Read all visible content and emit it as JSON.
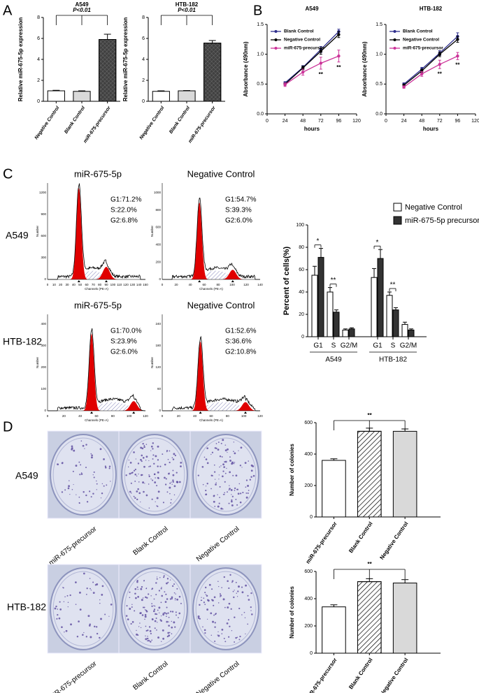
{
  "panels": [
    "A",
    "B",
    "C",
    "D"
  ],
  "chart_data": [
    {
      "type": "bar",
      "title": "A549",
      "ylabel": "Relative miR-675-5p expression",
      "annotation": "P<0.01",
      "categories": [
        "Negative Control",
        "Blank Control",
        "miR-675-precursor"
      ],
      "values": [
        1.0,
        0.95,
        5.9
      ],
      "errors": [
        0.05,
        0.05,
        0.5
      ],
      "colors": [
        "#ffffff",
        "#d9d9d9",
        "#404040"
      ],
      "hatch": [
        false,
        false,
        true
      ],
      "ylim": [
        0,
        8
      ],
      "yticks": [
        0,
        2,
        4,
        6,
        8
      ]
    },
    {
      "type": "bar",
      "title": "HTB-182",
      "ylabel": "Relative miR-675-5p expression",
      "annotation": "P<0.01",
      "categories": [
        "Negative Control",
        "Blank Control",
        "miR-675-precursor"
      ],
      "values": [
        0.95,
        1.0,
        5.55
      ],
      "errors": [
        0.05,
        0.03,
        0.25
      ],
      "colors": [
        "#ffffff",
        "#d9d9d9",
        "#404040"
      ],
      "hatch": [
        false,
        false,
        true
      ],
      "ylim": [
        0,
        8
      ],
      "yticks": [
        0,
        2,
        4,
        6,
        8
      ]
    },
    {
      "type": "line",
      "title": "A549",
      "xlabel": "hours",
      "ylabel": "Absorbance (490nm)",
      "x": [
        24,
        48,
        72,
        96
      ],
      "xlim": [
        0,
        120
      ],
      "xticks": [
        0,
        24,
        48,
        72,
        96,
        120
      ],
      "ylim": [
        0,
        1.5
      ],
      "yticks": [
        {
          "value": 0,
          "label": "0.0"
        },
        {
          "value": 0.5,
          "label": "0.5"
        },
        {
          "value": 1,
          "label": "1.0"
        },
        {
          "value": 1.5,
          "label": "1.5"
        }
      ],
      "annotations": [
        "**",
        "**"
      ],
      "series": [
        {
          "name": "Blank Control",
          "color": "#2e2e8c",
          "values": [
            0.52,
            0.78,
            1.08,
            1.38
          ],
          "errors": [
            0.02,
            0.03,
            0.05,
            0.04
          ]
        },
        {
          "name": "Negative Control",
          "color": "#000000",
          "values": [
            0.5,
            0.77,
            1.05,
            1.33
          ],
          "errors": [
            0.02,
            0.03,
            0.05,
            0.05
          ]
        },
        {
          "name": "miR-675-precursor",
          "color": "#cc3399",
          "values": [
            0.49,
            0.7,
            0.85,
            0.97
          ],
          "errors": [
            0.03,
            0.05,
            0.1,
            0.1
          ]
        }
      ]
    },
    {
      "type": "line",
      "title": "HTB-182",
      "xlabel": "hours",
      "ylabel": "Absorbance (490nm)",
      "x": [
        24,
        48,
        72,
        96
      ],
      "xlim": [
        0,
        120
      ],
      "xticks": [
        0,
        24,
        48,
        72,
        96,
        120
      ],
      "ylim": [
        0,
        1.5
      ],
      "yticks": [
        {
          "value": 0,
          "label": "0.0"
        },
        {
          "value": 0.5,
          "label": "0.5"
        },
        {
          "value": 1,
          "label": "1.0"
        },
        {
          "value": 1.5,
          "label": "1.5"
        }
      ],
      "annotations": [
        "**",
        "**"
      ],
      "series": [
        {
          "name": "Blank Control",
          "color": "#2e2e8c",
          "values": [
            0.5,
            0.75,
            1.02,
            1.3
          ],
          "errors": [
            0.02,
            0.03,
            0.04,
            0.06
          ]
        },
        {
          "name": "Negative Control",
          "color": "#000000",
          "values": [
            0.48,
            0.72,
            1.0,
            1.25
          ],
          "errors": [
            0.02,
            0.03,
            0.04,
            0.05
          ]
        },
        {
          "name": "miR-675-precursor",
          "color": "#cc3399",
          "values": [
            0.45,
            0.67,
            0.83,
            0.97
          ],
          "errors": [
            0.02,
            0.04,
            0.07,
            0.06
          ]
        }
      ]
    },
    {
      "type": "grouped_bar",
      "ylabel": "Percent of cells(%)",
      "categories": [
        "G1",
        "S",
        "G2/M",
        "G1",
        "S",
        "G2/M"
      ],
      "groups": [
        "A549",
        "HTB-182"
      ],
      "annotations": [
        "*",
        "**",
        "*",
        "**"
      ],
      "ylim": [
        0,
        100
      ],
      "yticks": [
        0,
        20,
        40,
        60,
        80,
        100
      ],
      "series": [
        {
          "name": "Negative Control",
          "color": "#ffffff",
          "values": [
            55,
            40,
            6,
            53,
            37,
            11
          ],
          "errors": [
            8,
            4,
            1,
            8,
            3,
            2
          ]
        },
        {
          "name": "miR-675-5p precursor",
          "color": "#333333",
          "values": [
            71,
            22,
            7,
            70,
            24,
            6
          ],
          "errors": [
            8,
            2,
            1,
            8,
            2,
            1
          ]
        }
      ]
    },
    {
      "type": "bar",
      "ylabel": "Number of colonies",
      "annotation": "**",
      "categories": [
        "miR-675-precursor",
        "Blank Control",
        "Negative Control"
      ],
      "values": [
        360,
        545,
        545
      ],
      "errors": [
        10,
        20,
        15
      ],
      "colors": [
        "#ffffff",
        "#ffffff",
        "#d9d9d9"
      ],
      "hatch": [
        false,
        true,
        false
      ],
      "ylim": [
        0,
        600
      ],
      "yticks": [
        0,
        200,
        400,
        600
      ]
    },
    {
      "type": "bar",
      "ylabel": "Number of colonies",
      "annotation": "**",
      "categories": [
        "miR-675-precursor",
        "Blank Control",
        "Negative Control"
      ],
      "values": [
        340,
        525,
        515
      ],
      "errors": [
        15,
        22,
        25
      ],
      "colors": [
        "#ffffff",
        "#ffffff",
        "#d9d9d9"
      ],
      "hatch": [
        false,
        true,
        false
      ],
      "ylim": [
        0,
        600
      ],
      "yticks": [
        0,
        200,
        400,
        600
      ]
    }
  ],
  "flow": {
    "rows": [
      "A549",
      "HTB-182"
    ],
    "xlabel": "Channels (PE-A)",
    "ylabel": "Number",
    "plots": [
      {
        "title": "miR-675-5p",
        "stats": [
          "G1:71.2%",
          "S:22.0%",
          "G2:6.8%"
        ],
        "xticks": [
          "0",
          "10",
          "20",
          "30",
          "40",
          "50",
          "60",
          "70",
          "80",
          "90",
          "100",
          "110",
          "120",
          "130",
          "140",
          "150"
        ],
        "yticks": [
          "0",
          "300",
          "600",
          "900",
          "1200"
        ]
      },
      {
        "title": "Negative Control",
        "stats": [
          "G1:54.7%",
          "S:39.3%",
          "G2:6.0%"
        ],
        "xticks": [
          "0",
          "20",
          "40",
          "60",
          "80",
          "100",
          "120",
          "140"
        ],
        "yticks": [
          "0",
          "200",
          "400",
          "600",
          "800",
          "1000"
        ]
      },
      {
        "title": "miR-675-5p",
        "stats": [
          "G1:70.0%",
          "S:23.9%",
          "G2:6.0%"
        ],
        "xticks": [
          "0",
          "20",
          "40",
          "60",
          "80",
          "100",
          "120"
        ],
        "yticks": [
          "0",
          "100",
          "200",
          "300",
          "400"
        ]
      },
      {
        "title": "Negative Control",
        "stats": [
          "G1:52.6%",
          "S:36.6%",
          "G2:10.8%"
        ],
        "xticks": [
          "0",
          "20",
          "40",
          "60",
          "80",
          "100",
          "120"
        ],
        "yticks": [
          "0",
          "60",
          "120",
          "180",
          "240"
        ]
      }
    ]
  },
  "colonies": {
    "rows": [
      "A549",
      "HTB-182"
    ],
    "categories": [
      "miR-675-precursor",
      "Blank Control",
      "Negative Control"
    ]
  }
}
